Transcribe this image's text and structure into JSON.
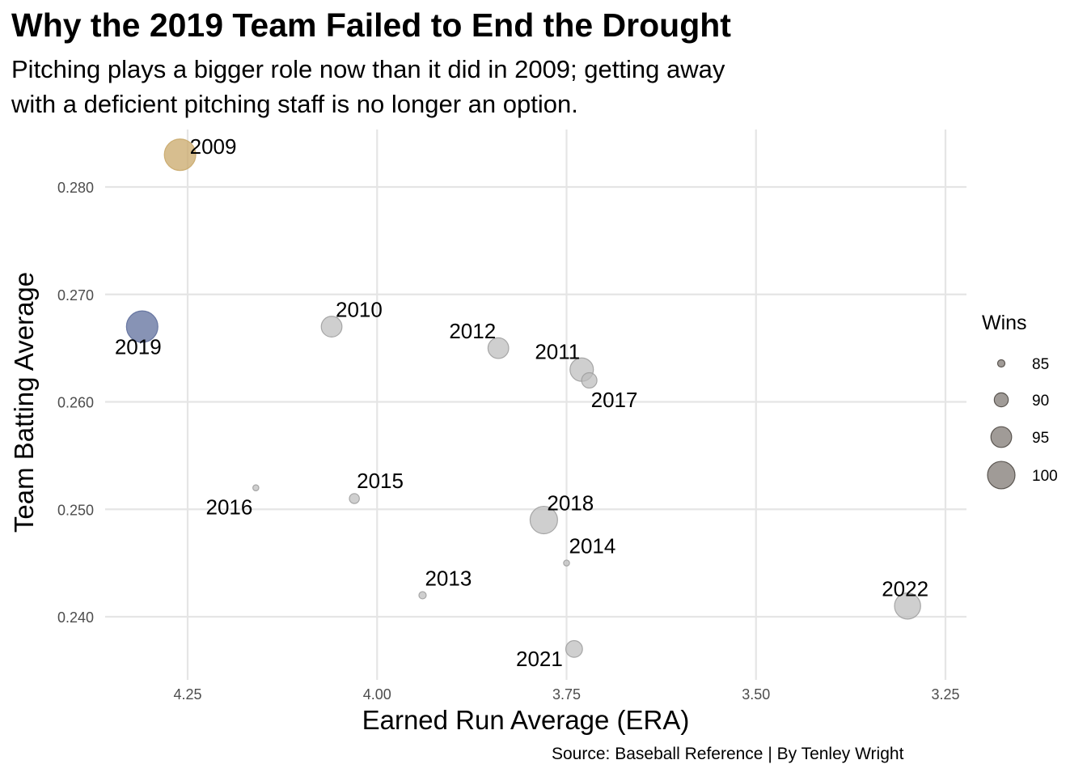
{
  "title": "Why the 2019 Team Failed to End the Drought",
  "subtitle_lines": [
    "Pitching plays a bigger role now than it did in 2009; getting away",
    "with a deficient pitching staff is no longer an option."
  ],
  "caption": "Source: Baseball Reference | By Tenley Wright",
  "colors": {
    "grid": "#e5e5e5",
    "default_point": "#bdbdbd",
    "highlight_2009": "#c9a86a",
    "highlight_2019": "#5f6f9c",
    "legend_point": "#8f8a85"
  },
  "chart_data": {
    "type": "scatter",
    "xlabel": "Earned Run Average (ERA)",
    "ylabel": "Team Batting Average",
    "x_reversed": true,
    "xlim": [
      4.32,
      3.23
    ],
    "ylim": [
      0.2345,
      0.2842
    ],
    "x_ticks": [
      4.25,
      4.0,
      3.75,
      3.5,
      3.25
    ],
    "x_tick_labels": [
      "4.25",
      "4.00",
      "3.75",
      "3.50",
      "3.25"
    ],
    "y_ticks": [
      0.24,
      0.25,
      0.26,
      0.27,
      0.28
    ],
    "y_tick_labels": [
      "0.240",
      "0.250",
      "0.260",
      "0.270",
      "0.280"
    ],
    "grid": true,
    "size_legend": {
      "title": "Wins",
      "values": [
        85,
        90,
        95,
        100
      ],
      "labels": [
        "85",
        "90",
        "95",
        "100"
      ]
    },
    "points": [
      {
        "label": "2009",
        "era": 4.26,
        "avg": 0.283,
        "wins": 103,
        "color": "highlight_2009"
      },
      {
        "label": "2019",
        "era": 4.31,
        "avg": 0.267,
        "wins": 103,
        "color": "highlight_2019"
      },
      {
        "label": "2010",
        "era": 4.06,
        "avg": 0.267,
        "wins": 95,
        "color": "default_point"
      },
      {
        "label": "2012",
        "era": 3.84,
        "avg": 0.265,
        "wins": 95,
        "color": "default_point"
      },
      {
        "label": "2011",
        "era": 3.73,
        "avg": 0.263,
        "wins": 97,
        "color": "default_point"
      },
      {
        "label": "2017",
        "era": 3.72,
        "avg": 0.262,
        "wins": 91,
        "color": "default_point"
      },
      {
        "label": "2016",
        "era": 4.16,
        "avg": 0.252,
        "wins": 84,
        "color": "default_point"
      },
      {
        "label": "2015",
        "era": 4.03,
        "avg": 0.251,
        "wins": 87,
        "color": "default_point"
      },
      {
        "label": "2018",
        "era": 3.78,
        "avg": 0.249,
        "wins": 100,
        "color": "default_point"
      },
      {
        "label": "2014",
        "era": 3.75,
        "avg": 0.245,
        "wins": 84,
        "color": "default_point"
      },
      {
        "label": "2013",
        "era": 3.94,
        "avg": 0.242,
        "wins": 85,
        "color": "default_point"
      },
      {
        "label": "2021",
        "era": 3.74,
        "avg": 0.237,
        "wins": 92,
        "color": "default_point"
      },
      {
        "label": "2022",
        "era": 3.3,
        "avg": 0.241,
        "wins": 99,
        "color": "default_point"
      }
    ]
  }
}
